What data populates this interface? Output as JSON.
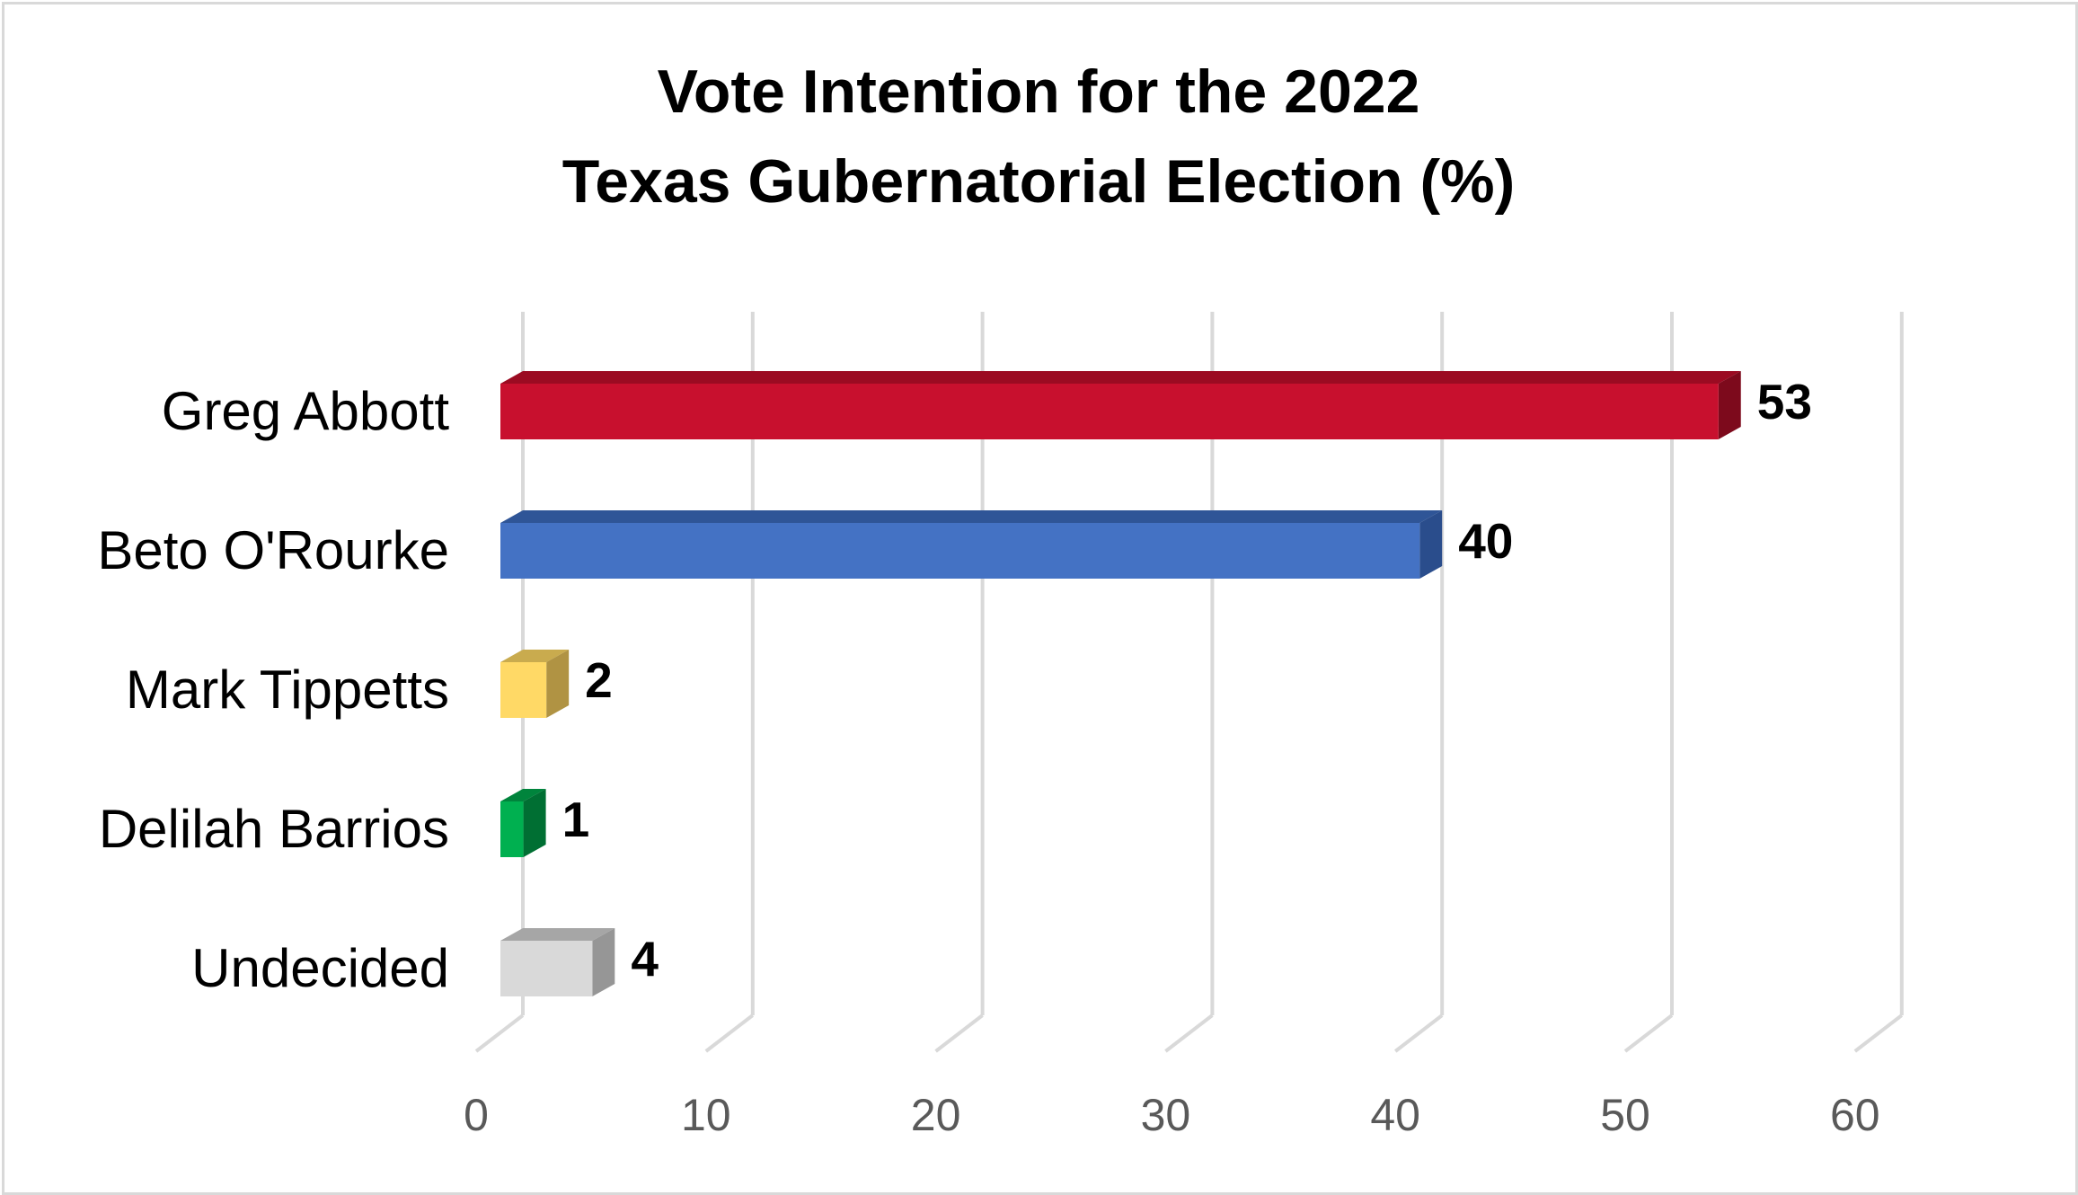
{
  "chart_data": {
    "type": "bar",
    "orientation": "horizontal",
    "title_lines": [
      "Vote Intention for the 2022",
      "Texas Gubernatorial Election (%)"
    ],
    "categories": [
      "Greg Abbott",
      "Beto O'Rourke",
      "Mark Tippetts",
      "Delilah Barrios",
      "Undecided"
    ],
    "values": [
      53,
      40,
      2,
      1,
      4
    ],
    "data_labels": [
      "53",
      "40",
      "2",
      "1",
      "4"
    ],
    "colors": [
      {
        "front": "#c8102e",
        "top": "#9b0b22",
        "side": "#7d0a1c"
      },
      {
        "front": "#4472c4",
        "top": "#2f5597",
        "side": "#2a4d8c"
      },
      {
        "front": "#ffd966",
        "top": "#c9ab4e",
        "side": "#b09343"
      },
      {
        "front": "#00b050",
        "top": "#00843c",
        "side": "#006f33"
      },
      {
        "front": "#d9d9d9",
        "top": "#a6a6a6",
        "side": "#969696"
      }
    ],
    "xlim": [
      0,
      60
    ],
    "xticks": [
      "0",
      "10",
      "20",
      "30",
      "40",
      "50",
      "60"
    ],
    "xlabel": "",
    "ylabel": "",
    "grid": true,
    "style": "3d-clustered-bar"
  }
}
